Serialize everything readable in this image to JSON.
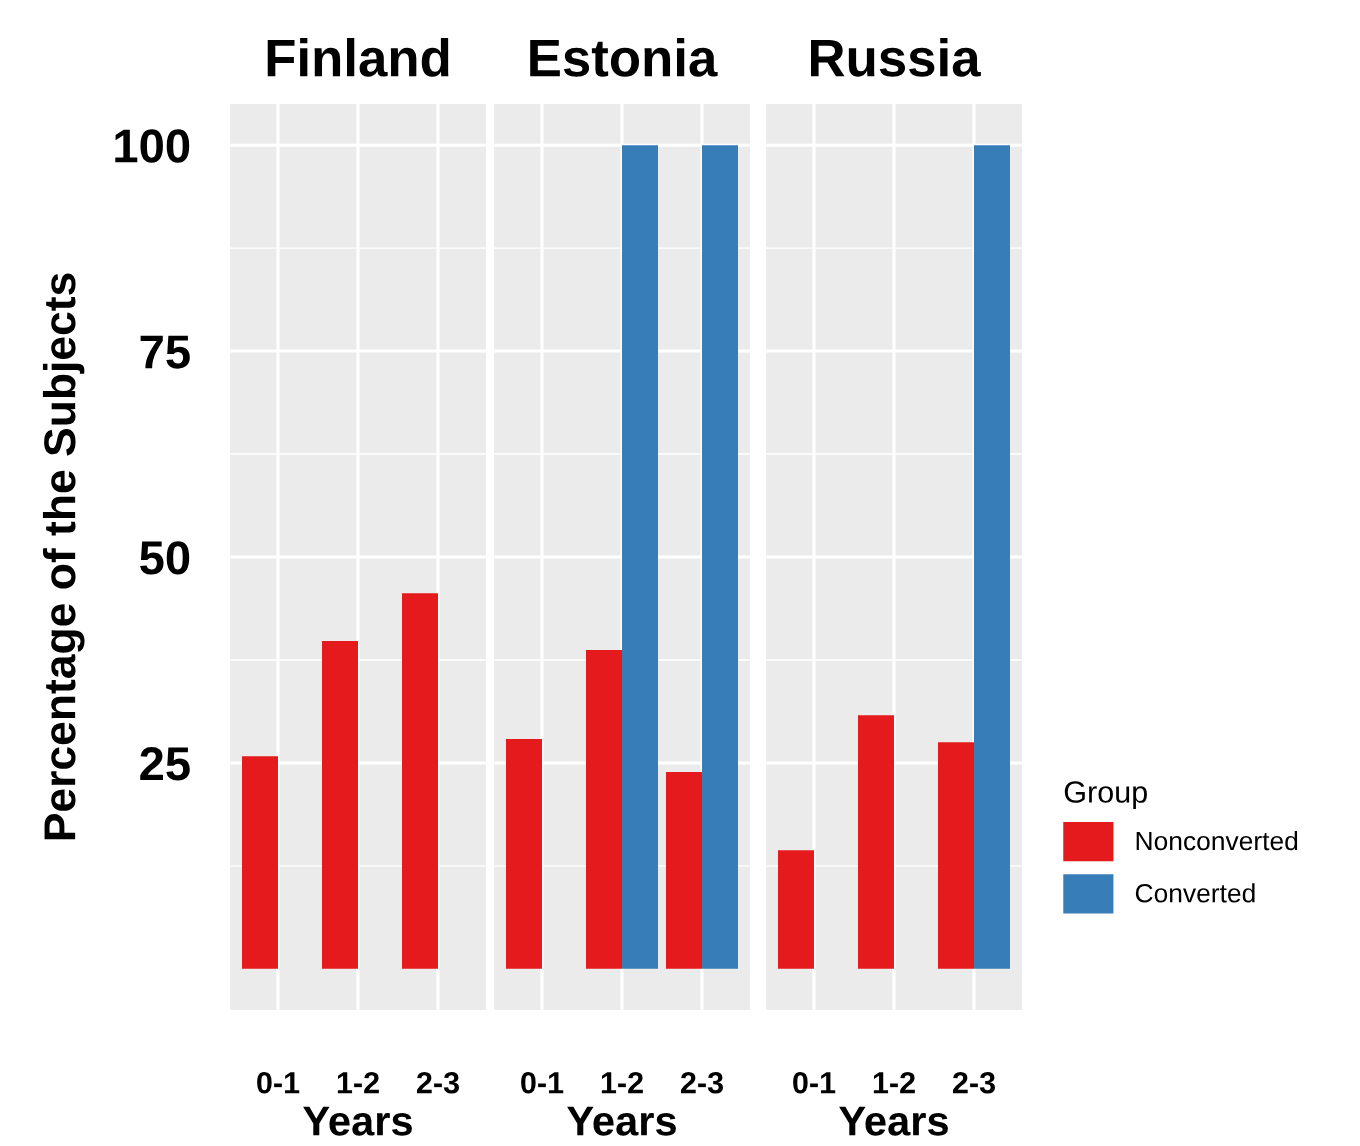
{
  "chart_data": [
    {
      "type": "bar",
      "title": "Finland",
      "xlabel": "Years",
      "ylabel": "Percentage of the Subjects",
      "categories": [
        "0-1",
        "1-2",
        "2-3"
      ],
      "series": [
        {
          "color": "#e41a1c",
          "values": [
            25.8,
            39.8,
            45.6
          ]
        },
        {
          "color": "#377eb8",
          "values": [
            null,
            null,
            null
          ]
        }
      ],
      "ylim": [
        -5,
        105
      ],
      "yticks": [
        25,
        50,
        75,
        100
      ],
      "grid": true
    },
    {
      "type": "bar",
      "title": "Estonia",
      "xlabel": "Years",
      "categories": [
        "0-1",
        "1-2",
        "2-3"
      ],
      "series": [
        {
          "color": "#e41a1c",
          "values": [
            27.9,
            38.7,
            23.9
          ]
        },
        {
          "color": "#377eb8",
          "values": [
            null,
            100,
            100
          ]
        }
      ],
      "ylim": [
        -5,
        105
      ],
      "yticks": [
        25,
        50,
        75,
        100
      ],
      "grid": true,
      "tick_labels": "x"
    },
    {
      "type": "bar",
      "title": "Russia",
      "xlabel": "Years",
      "categories": [
        "0-1",
        "1-2",
        "2-3"
      ],
      "legend_title": "Group",
      "series": [
        {
          "name": "Nonconverted",
          "color": "#e41a1c",
          "values": [
            14.4,
            30.8,
            27.5
          ]
        },
        {
          "name": "Converted",
          "color": "#377eb8",
          "values": [
            null,
            null,
            100
          ]
        }
      ],
      "ylim": [
        -5,
        105
      ],
      "yticks": [
        25,
        50,
        75,
        100
      ],
      "grid": true,
      "legend": "right",
      "tick_labels": "x"
    }
  ]
}
